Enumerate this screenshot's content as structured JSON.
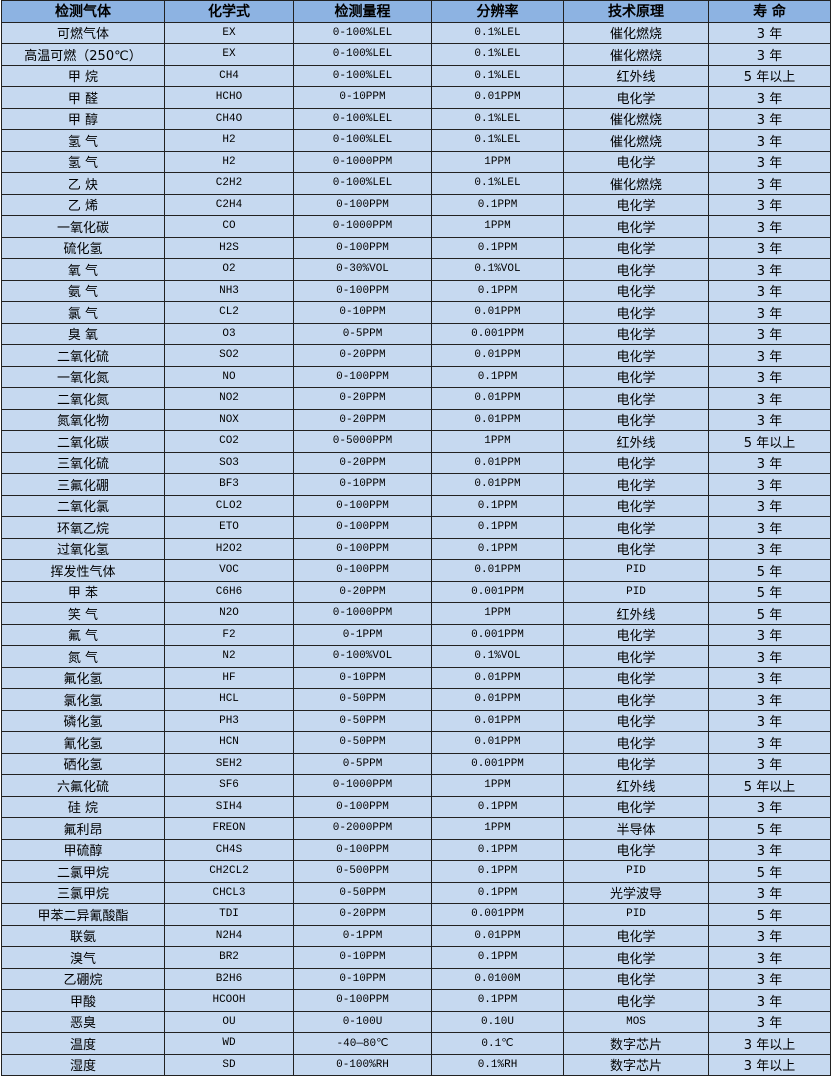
{
  "colors": {
    "header_bg": "#8db3e2",
    "row_bg": "#c6d9f0",
    "border": "#222222"
  },
  "headers": [
    "检测气体",
    "化学式",
    "检测量程",
    "分辨率",
    "技术原理",
    "寿 命"
  ],
  "rows": [
    [
      "可燃气体",
      "EX",
      "0-100%LEL",
      "0.1%LEL",
      "催化燃烧",
      "3 年"
    ],
    [
      "高温可燃（250℃）",
      "EX",
      "0-100%LEL",
      "0.1%LEL",
      "催化燃烧",
      "3 年"
    ],
    [
      "甲 烷",
      "CH4",
      "0-100%LEL",
      "0.1%LEL",
      "红外线",
      "5 年以上"
    ],
    [
      "甲 醛",
      "HCHO",
      "0-10PPM",
      "0.01PPM",
      "电化学",
      "3 年"
    ],
    [
      "甲 醇",
      "CH4O",
      "0-100%LEL",
      "0.1%LEL",
      "催化燃烧",
      "3 年"
    ],
    [
      "氢 气",
      "H2",
      "0-100%LEL",
      "0.1%LEL",
      "催化燃烧",
      "3 年"
    ],
    [
      "氢 气",
      "H2",
      "0-1000PPM",
      "1PPM",
      "电化学",
      "3 年"
    ],
    [
      "乙 炔",
      "C2H2",
      "0-100%LEL",
      "0.1%LEL",
      "催化燃烧",
      "3 年"
    ],
    [
      "乙 烯",
      "C2H4",
      "0-100PPM",
      "0.1PPM",
      "电化学",
      "3 年"
    ],
    [
      "一氧化碳",
      "CO",
      "0-1000PPM",
      "1PPM",
      "电化学",
      "3 年"
    ],
    [
      "硫化氢",
      "H2S",
      "0-100PPM",
      "0.1PPM",
      "电化学",
      "3 年"
    ],
    [
      "氧 气",
      "O2",
      "0-30%VOL",
      "0.1%VOL",
      "电化学",
      "3 年"
    ],
    [
      "氨 气",
      "NH3",
      "0-100PPM",
      "0.1PPM",
      "电化学",
      "3 年"
    ],
    [
      "氯 气",
      "CL2",
      "0-10PPM",
      "0.01PPM",
      "电化学",
      "3 年"
    ],
    [
      "臭 氧",
      "O3",
      "0-5PPM",
      "0.001PPM",
      "电化学",
      "3 年"
    ],
    [
      "二氧化硫",
      "SO2",
      "0-20PPM",
      "0.01PPM",
      "电化学",
      "3 年"
    ],
    [
      "一氧化氮",
      "NO",
      "0-100PPM",
      "0.1PPM",
      "电化学",
      "3 年"
    ],
    [
      "二氧化氮",
      "NO2",
      "0-20PPM",
      "0.01PPM",
      "电化学",
      "3 年"
    ],
    [
      "氮氧化物",
      "NOX",
      "0-20PPM",
      "0.01PPM",
      "电化学",
      "3 年"
    ],
    [
      "二氧化碳",
      "CO2",
      "0-5000PPM",
      "1PPM",
      "红外线",
      "5 年以上"
    ],
    [
      "三氧化硫",
      "SO3",
      "0-20PPM",
      "0.01PPM",
      "电化学",
      "3 年"
    ],
    [
      "三氟化硼",
      "BF3",
      "0-10PPM",
      "0.01PPM",
      "电化学",
      "3 年"
    ],
    [
      "二氧化氯",
      "CLO2",
      "0-100PPM",
      "0.1PPM",
      "电化学",
      "3 年"
    ],
    [
      "环氧乙烷",
      "ETO",
      "0-100PPM",
      "0.1PPM",
      "电化学",
      "3 年"
    ],
    [
      "过氧化氢",
      "H2O2",
      "0-100PPM",
      "0.1PPM",
      "电化学",
      "3 年"
    ],
    [
      "挥发性气体",
      "VOC",
      "0-100PPM",
      "0.01PPM",
      "PID",
      "5 年"
    ],
    [
      "甲 苯",
      "C6H6",
      "0-20PPM",
      "0.001PPM",
      "PID",
      "5 年"
    ],
    [
      "笑 气",
      "N2O",
      "0-1000PPM",
      "1PPM",
      "红外线",
      "5 年"
    ],
    [
      "氟 气",
      "F2",
      "0-1PPM",
      "0.001PPM",
      "电化学",
      "3 年"
    ],
    [
      "氮 气",
      "N2",
      "0-100%VOL",
      "0.1%VOL",
      "电化学",
      "3 年"
    ],
    [
      "氟化氢",
      "HF",
      "0-10PPM",
      "0.01PPM",
      "电化学",
      "3 年"
    ],
    [
      "氯化氢",
      "HCL",
      "0-50PPM",
      "0.01PPM",
      "电化学",
      "3 年"
    ],
    [
      "磷化氢",
      "PH3",
      "0-50PPM",
      "0.01PPM",
      "电化学",
      "3 年"
    ],
    [
      "氰化氢",
      "HCN",
      "0-50PPM",
      "0.01PPM",
      "电化学",
      "3 年"
    ],
    [
      "硒化氢",
      "SEH2",
      "0-5PPM",
      "0.001PPM",
      "电化学",
      "3 年"
    ],
    [
      "六氟化硫",
      "SF6",
      "0-1000PPM",
      "1PPM",
      "红外线",
      "5 年以上"
    ],
    [
      "硅 烷",
      "SIH4",
      "0-100PPM",
      "0.1PPM",
      "电化学",
      "3 年"
    ],
    [
      "氟利昂",
      "FREON",
      "0-2000PPM",
      "1PPM",
      "半导体",
      "5 年"
    ],
    [
      "甲硫醇",
      "CH4S",
      "0-100PPM",
      "0.1PPM",
      "电化学",
      "3 年"
    ],
    [
      "二氯甲烷",
      "CH2CL2",
      "0-500PPM",
      "0.1PPM",
      "PID",
      "5 年"
    ],
    [
      "三氯甲烷",
      "CHCL3",
      "0-50PPM",
      "0.1PPM",
      "光学波导",
      "3 年"
    ],
    [
      "甲苯二异氰酸酯",
      "TDI",
      "0-20PPM",
      "0.001PPM",
      "PID",
      "5 年"
    ],
    [
      "联氨",
      "N2H4",
      "0-1PPM",
      "0.01PPM",
      "电化学",
      "3 年"
    ],
    [
      "溴气",
      "BR2",
      "0-10PPM",
      "0.1PPM",
      "电化学",
      "3 年"
    ],
    [
      "乙硼烷",
      "B2H6",
      "0-10PPM",
      "0.0100M",
      "电化学",
      "3 年"
    ],
    [
      "甲酸",
      "HCOOH",
      "0-100PPM",
      "0.1PPM",
      "电化学",
      "3 年"
    ],
    [
      "恶臭",
      "OU",
      "0-100U",
      "0.10U",
      "MOS",
      "3 年"
    ],
    [
      "温度",
      "WD",
      "-40—80℃",
      "0.1℃",
      "数字芯片",
      "3 年以上"
    ],
    [
      "湿度",
      "SD",
      "0-100%RH",
      "0.1%RH",
      "数字芯片",
      "3 年以上"
    ]
  ]
}
